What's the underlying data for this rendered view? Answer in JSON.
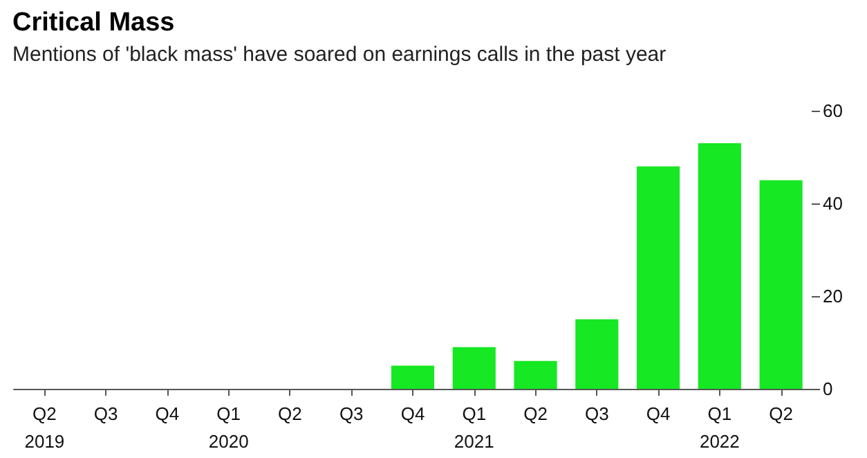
{
  "chart_data": {
    "type": "bar",
    "title": "Critical Mass",
    "subtitle": "Mentions of 'black mass' have soared on earnings calls in the past year",
    "categories": [
      "Q2\n2019",
      "Q3",
      "Q4",
      "Q1\n2020",
      "Q2",
      "Q3",
      "Q4",
      "Q1\n2021",
      "Q2",
      "Q3",
      "Q4",
      "Q1\n2022",
      "Q2"
    ],
    "values": [
      0,
      0,
      0,
      0,
      0,
      0,
      5,
      9,
      6,
      15,
      48,
      53,
      45
    ],
    "color": "#16e823",
    "ylim": [
      0,
      60
    ],
    "yticks": [
      0,
      20,
      40,
      60
    ],
    "grid": false
  }
}
